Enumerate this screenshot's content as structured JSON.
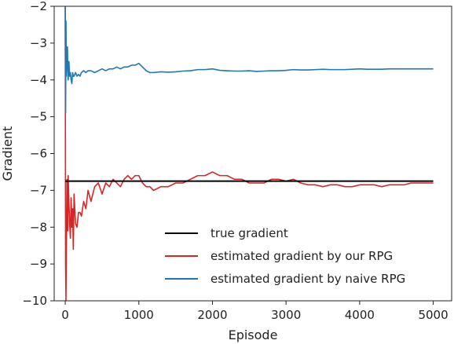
{
  "chart_data": {
    "type": "line",
    "title": "",
    "xlabel": "Episode",
    "ylabel": "Gradient",
    "xlim": [
      -150,
      5250
    ],
    "ylim": [
      -10,
      -2
    ],
    "xticks": [
      0,
      1000,
      2000,
      3000,
      4000,
      5000
    ],
    "xtick_labels": [
      "0",
      "1000",
      "2000",
      "3000",
      "4000",
      "5000"
    ],
    "yticks": [
      -10,
      -9,
      -8,
      -7,
      -6,
      -5,
      -4,
      -3,
      -2
    ],
    "ytick_labels": [
      "−10",
      "−9",
      "−8",
      "−7",
      "−6",
      "−5",
      "−4",
      "−3",
      "−2"
    ],
    "grid": false,
    "legend_position": "lower-right",
    "series": [
      {
        "name": "true gradient",
        "color": "#000000",
        "x": [
          0,
          5000
        ],
        "y": [
          -6.75,
          -6.75
        ]
      },
      {
        "name": "estimated gradient by our RPG",
        "color": "#d62728",
        "x": [
          0,
          5,
          10,
          15,
          20,
          25,
          30,
          35,
          40,
          50,
          60,
          70,
          80,
          90,
          100,
          110,
          120,
          140,
          160,
          180,
          200,
          220,
          250,
          280,
          310,
          350,
          400,
          450,
          500,
          550,
          600,
          650,
          700,
          750,
          800,
          850,
          900,
          950,
          1000,
          1050,
          1100,
          1150,
          1200,
          1300,
          1400,
          1500,
          1600,
          1700,
          1800,
          1900,
          2000,
          2100,
          2200,
          2300,
          2400,
          2500,
          2600,
          2700,
          2800,
          2900,
          3000,
          3100,
          3200,
          3300,
          3400,
          3500,
          3600,
          3700,
          3800,
          3900,
          4000,
          4100,
          4200,
          4300,
          4400,
          4500,
          4600,
          4700,
          4800,
          4900,
          5000
        ],
        "y": [
          -2.0,
          -9.0,
          -10.0,
          -8.6,
          -7.8,
          -6.7,
          -7.6,
          -8.1,
          -6.6,
          -7.3,
          -7.9,
          -8.3,
          -7.2,
          -8.0,
          -7.5,
          -8.6,
          -7.1,
          -7.9,
          -8.0,
          -7.6,
          -7.6,
          -7.7,
          -7.3,
          -7.5,
          -7.0,
          -7.3,
          -6.9,
          -6.8,
          -7.1,
          -6.8,
          -6.9,
          -6.7,
          -6.8,
          -6.9,
          -6.7,
          -6.6,
          -6.7,
          -6.6,
          -6.6,
          -6.8,
          -6.9,
          -6.9,
          -7.0,
          -6.9,
          -6.9,
          -6.8,
          -6.8,
          -6.7,
          -6.6,
          -6.6,
          -6.5,
          -6.6,
          -6.6,
          -6.7,
          -6.7,
          -6.8,
          -6.8,
          -6.8,
          -6.7,
          -6.7,
          -6.75,
          -6.7,
          -6.8,
          -6.85,
          -6.85,
          -6.9,
          -6.85,
          -6.85,
          -6.9,
          -6.9,
          -6.85,
          -6.85,
          -6.85,
          -6.9,
          -6.85,
          -6.85,
          -6.85,
          -6.8,
          -6.8,
          -6.8,
          -6.8
        ]
      },
      {
        "name": "estimated gradient by naive RPG",
        "color": "#1f77b4",
        "x": [
          0,
          5,
          10,
          15,
          20,
          25,
          30,
          35,
          40,
          50,
          60,
          70,
          80,
          90,
          100,
          110,
          120,
          140,
          160,
          180,
          200,
          220,
          250,
          280,
          310,
          350,
          400,
          450,
          500,
          550,
          600,
          650,
          700,
          750,
          800,
          850,
          900,
          950,
          1000,
          1050,
          1100,
          1150,
          1200,
          1300,
          1400,
          1500,
          1600,
          1700,
          1800,
          1900,
          2000,
          2100,
          2200,
          2300,
          2400,
          2500,
          2600,
          2700,
          2800,
          2900,
          3000,
          3100,
          3200,
          3300,
          3400,
          3500,
          3600,
          3700,
          3800,
          3900,
          4000,
          4100,
          4200,
          4300,
          4400,
          4500,
          4600,
          4700,
          4800,
          4900,
          5000
        ],
        "y": [
          -2.0,
          -4.9,
          -2.4,
          -3.9,
          -3.6,
          -3.3,
          -3.1,
          -3.7,
          -4.0,
          -3.5,
          -3.9,
          -3.8,
          -4.0,
          -4.1,
          -3.8,
          -3.9,
          -3.9,
          -3.8,
          -3.9,
          -3.85,
          -3.9,
          -3.8,
          -3.75,
          -3.8,
          -3.75,
          -3.75,
          -3.8,
          -3.75,
          -3.7,
          -3.75,
          -3.7,
          -3.7,
          -3.65,
          -3.7,
          -3.65,
          -3.65,
          -3.6,
          -3.6,
          -3.55,
          -3.65,
          -3.75,
          -3.8,
          -3.8,
          -3.78,
          -3.79,
          -3.78,
          -3.76,
          -3.75,
          -3.72,
          -3.72,
          -3.7,
          -3.74,
          -3.75,
          -3.76,
          -3.76,
          -3.75,
          -3.77,
          -3.76,
          -3.75,
          -3.75,
          -3.74,
          -3.72,
          -3.73,
          -3.73,
          -3.72,
          -3.71,
          -3.72,
          -3.72,
          -3.72,
          -3.71,
          -3.7,
          -3.71,
          -3.71,
          -3.71,
          -3.7,
          -3.7,
          -3.7,
          -3.7,
          -3.7,
          -3.7,
          -3.7
        ]
      }
    ]
  }
}
